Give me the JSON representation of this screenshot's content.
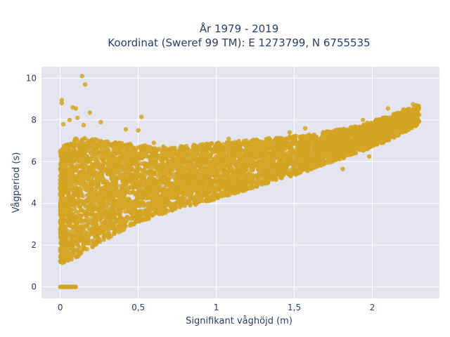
{
  "chart_data": {
    "type": "scatter",
    "title_lines": [
      "År 1979 - 2019",
      "Koordinat (Sweref 99 TM): E 1273799, N 6755535"
    ],
    "xlabel": "Signifikant våghöjd (m)",
    "ylabel": "Vågperiod (s)",
    "xlim": [
      -0.12,
      2.43
    ],
    "ylim": [
      -0.55,
      10.55
    ],
    "xticks": [
      0,
      0.5,
      1,
      1.5,
      2
    ],
    "xtick_labels": [
      "0",
      "0,5",
      "1",
      "1,5",
      "2"
    ],
    "yticks": [
      0,
      2,
      4,
      6,
      8,
      10
    ],
    "ytick_labels": [
      "0",
      "2",
      "4",
      "6",
      "8",
      "10"
    ],
    "grid": true,
    "colors": {
      "marker": "#d4a423",
      "plot_bg": "#e5e5ef",
      "grid": "#ffffff"
    },
    "envelope": {
      "x": [
        0.0,
        0.1,
        0.3,
        0.5,
        0.7,
        1.0,
        1.3,
        1.6,
        1.9,
        2.1,
        2.3
      ],
      "lower": [
        1.1,
        1.4,
        2.3,
        3.1,
        3.6,
        4.2,
        4.9,
        5.6,
        6.4,
        7.0,
        7.8
      ],
      "upper": [
        6.6,
        7.2,
        7.0,
        6.8,
        6.7,
        6.9,
        7.1,
        7.3,
        7.7,
        8.2,
        8.7
      ]
    },
    "highlight_points": [
      {
        "x": 0.14,
        "y": 10.1
      },
      {
        "x": 0.16,
        "y": 9.7
      },
      {
        "x": 0.01,
        "y": 8.95
      },
      {
        "x": 0.01,
        "y": 8.8
      },
      {
        "x": 0.08,
        "y": 8.6
      },
      {
        "x": 0.1,
        "y": 8.55
      },
      {
        "x": 0.19,
        "y": 8.35
      },
      {
        "x": 0.52,
        "y": 8.15
      },
      {
        "x": 0.11,
        "y": 8.1
      },
      {
        "x": 0.06,
        "y": 8.0
      },
      {
        "x": 0.02,
        "y": 7.8
      },
      {
        "x": 0.15,
        "y": 7.75
      },
      {
        "x": 0.26,
        "y": 7.9
      },
      {
        "x": 0.42,
        "y": 7.55
      },
      {
        "x": 0.5,
        "y": 7.5
      },
      {
        "x": 0.6,
        "y": 6.9
      },
      {
        "x": 1.47,
        "y": 7.4
      },
      {
        "x": 1.57,
        "y": 7.6
      },
      {
        "x": 1.08,
        "y": 7.1
      },
      {
        "x": 0.92,
        "y": 6.1
      },
      {
        "x": 1.94,
        "y": 8.0
      },
      {
        "x": 2.1,
        "y": 8.55
      },
      {
        "x": 2.2,
        "y": 8.5
      },
      {
        "x": 2.26,
        "y": 8.75
      },
      {
        "x": 2.28,
        "y": 8.7
      },
      {
        "x": 2.3,
        "y": 8.25
      },
      {
        "x": 1.76,
        "y": 6.4
      },
      {
        "x": 1.98,
        "y": 6.25
      },
      {
        "x": 1.81,
        "y": 5.65
      },
      {
        "x": 1.72,
        "y": 6.1
      },
      {
        "x": 0.01,
        "y": 1.6
      },
      {
        "x": 0.03,
        "y": 1.35
      },
      {
        "x": 0.02,
        "y": 1.2
      },
      {
        "x": 0.0,
        "y": 4.7
      },
      {
        "x": 0.0,
        "y": 4.95
      },
      {
        "x": 0.0,
        "y": 3.95
      },
      {
        "x": 0.0,
        "y": 3.15
      }
    ],
    "zero_band": {
      "x_from": 0.0,
      "x_to": 0.1,
      "y": 0
    }
  }
}
